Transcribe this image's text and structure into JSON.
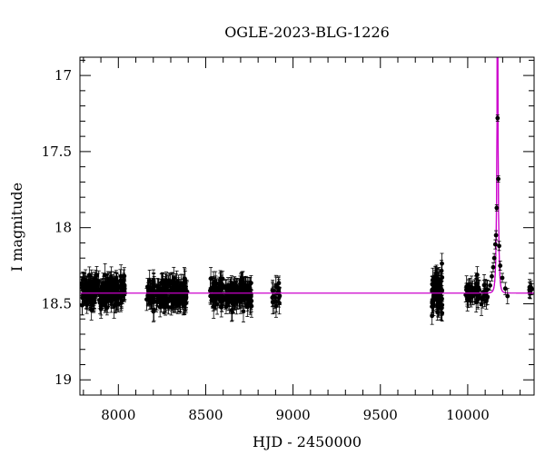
{
  "chart_data": {
    "type": "scatter",
    "title": "OGLE-2023-BLG-1226",
    "xlabel": "HJD - 2450000",
    "ylabel": "I magnitude",
    "xlim": [
      7780,
      10380
    ],
    "ylim": [
      19.1,
      16.88
    ],
    "y_inverted": true,
    "grid": false,
    "x_ticks": [
      8000,
      8500,
      9000,
      9500,
      10000
    ],
    "x_tick_labels": [
      "8000",
      "8500",
      "9000",
      "9500",
      "10000"
    ],
    "y_ticks": [
      17,
      17.5,
      18,
      18.5,
      19
    ],
    "y_tick_labels": [
      "17",
      "17.5",
      "18",
      "18.5",
      "19"
    ],
    "colors": {
      "data": "#000000",
      "model": "#cc00cc"
    },
    "series": [
      {
        "kind": "data",
        "seasons": [
          {
            "start": 7790,
            "end": 8040,
            "mag_mean": 18.42,
            "mag_scatter": 0.045,
            "err": 0.06,
            "n": 230
          },
          {
            "start": 8160,
            "end": 8395,
            "mag_mean": 18.43,
            "mag_scatter": 0.045,
            "err": 0.06,
            "n": 200
          },
          {
            "start": 8525,
            "end": 8765,
            "mag_mean": 18.43,
            "mag_scatter": 0.045,
            "err": 0.06,
            "n": 200
          },
          {
            "start": 8880,
            "end": 8925,
            "mag_mean": 18.45,
            "mag_scatter": 0.05,
            "err": 0.06,
            "n": 20
          },
          {
            "start": 9795,
            "end": 9855,
            "mag_mean": 18.43,
            "mag_scatter": 0.07,
            "err": 0.07,
            "n": 90
          },
          {
            "start": 9985,
            "end": 10120,
            "mag_mean": 18.42,
            "mag_scatter": 0.04,
            "err": 0.06,
            "n": 60
          },
          {
            "start": 10340,
            "end": 10375,
            "mag_mean": 18.41,
            "mag_scatter": 0.02,
            "err": 0.04,
            "n": 6
          }
        ],
        "peak_points": [
          {
            "x": 10128,
            "y": 18.38,
            "err": 0.03
          },
          {
            "x": 10138,
            "y": 18.32,
            "err": 0.03
          },
          {
            "x": 10146,
            "y": 18.26,
            "err": 0.03
          },
          {
            "x": 10152,
            "y": 18.2,
            "err": 0.03
          },
          {
            "x": 10158,
            "y": 18.11,
            "err": 0.03
          },
          {
            "x": 10162,
            "y": 18.05,
            "err": 0.03
          },
          {
            "x": 10166,
            "y": 17.87,
            "err": 0.02
          },
          {
            "x": 10171,
            "y": 17.28,
            "err": 0.02
          },
          {
            "x": 10175,
            "y": 17.68,
            "err": 0.02
          },
          {
            "x": 10180,
            "y": 18.12,
            "err": 0.03
          },
          {
            "x": 10186,
            "y": 18.25,
            "err": 0.03
          },
          {
            "x": 10198,
            "y": 18.33,
            "err": 0.03
          },
          {
            "x": 10215,
            "y": 18.4,
            "err": 0.04
          },
          {
            "x": 10228,
            "y": 18.45,
            "err": 0.05
          }
        ]
      },
      {
        "kind": "model",
        "baseline": 18.43,
        "t0": 10170.5,
        "u0": 0.05,
        "tE": 8.5,
        "peak_mag": 16.88
      }
    ]
  }
}
